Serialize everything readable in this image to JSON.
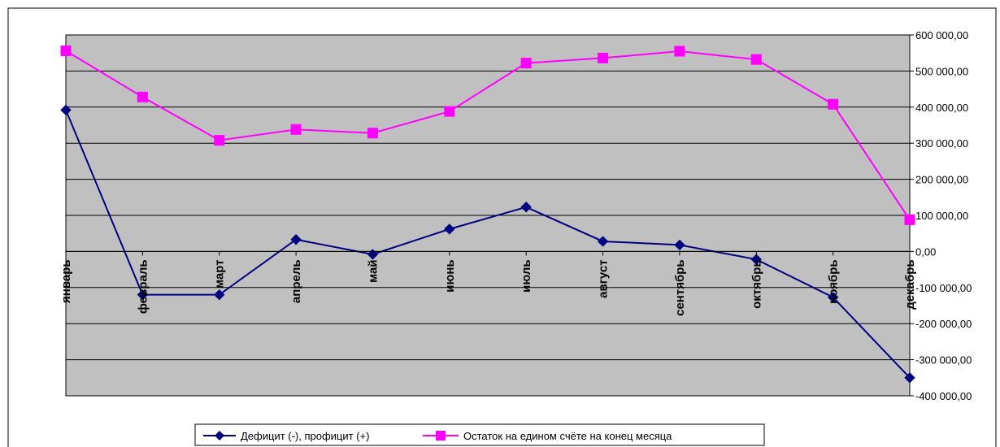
{
  "chart_data": {
    "type": "line",
    "categories": [
      "январь",
      "февраль",
      "март",
      "апрель",
      "май",
      "июнь",
      "июль",
      "август",
      "сентябрь",
      "октябрь",
      "ноябрь",
      "декабрь"
    ],
    "series": [
      {
        "name": "Дефицит (-), профицит (+)",
        "color": "#000080",
        "marker": "diamond",
        "values": [
          392000,
          -120000,
          -120000,
          33000,
          -8000,
          62000,
          123000,
          28000,
          18000,
          -22000,
          -127000,
          -350000
        ]
      },
      {
        "name": "Остаток на едином счёте на конец месяца",
        "color": "#ff00ff",
        "marker": "square",
        "values": [
          556000,
          428000,
          308000,
          338000,
          328000,
          388000,
          522000,
          536000,
          555000,
          532000,
          408000,
          88000
        ]
      }
    ],
    "ylim": [
      -400000,
      600000
    ],
    "yticks": [
      {
        "value": 600000,
        "label": "600 000,00"
      },
      {
        "value": 500000,
        "label": "500 000,00"
      },
      {
        "value": 400000,
        "label": "400 000,00"
      },
      {
        "value": 300000,
        "label": "300 000,00"
      },
      {
        "value": 200000,
        "label": "200 000,00"
      },
      {
        "value": 100000,
        "label": "100 000,00"
      },
      {
        "value": 0,
        "label": "0,00"
      },
      {
        "value": -100000,
        "label": "-100 000,00"
      },
      {
        "value": -200000,
        "label": "-200 000,00"
      },
      {
        "value": -300000,
        "label": "-300 000,00"
      },
      {
        "value": -400000,
        "label": "-400 000,00"
      }
    ],
    "y_axis_side": "right",
    "grid": true,
    "plot_background": "#c0c0c0",
    "legend_position": "bottom"
  }
}
